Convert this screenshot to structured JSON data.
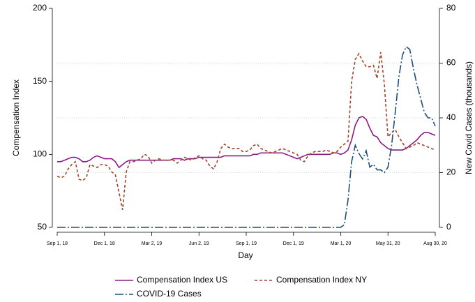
{
  "chart_data": {
    "type": "line",
    "x_label": "Day",
    "y_label": "Compensation Index",
    "y2_label": "New Covid Cases (thousands)",
    "categories": [
      "Sep 1, 18",
      null,
      null,
      null,
      null,
      null,
      null,
      null,
      null,
      null,
      null,
      null,
      null,
      "Dec 1, 18",
      null,
      null,
      null,
      null,
      null,
      null,
      null,
      null,
      null,
      null,
      null,
      null,
      "Mar 2, 19",
      null,
      null,
      null,
      null,
      null,
      null,
      null,
      null,
      null,
      null,
      null,
      null,
      "Jun 2, 19",
      null,
      null,
      null,
      null,
      null,
      null,
      null,
      null,
      null,
      null,
      null,
      null,
      "Sep 1, 19",
      null,
      null,
      null,
      null,
      null,
      null,
      null,
      null,
      null,
      null,
      null,
      null,
      "Dec 1, 19",
      null,
      null,
      null,
      null,
      null,
      null,
      null,
      null,
      null,
      null,
      null,
      null,
      "Mar 1, 20",
      null,
      null,
      null,
      null,
      null,
      null,
      null,
      null,
      null,
      null,
      null,
      null,
      "May 31, 20",
      null,
      null,
      null,
      null,
      null,
      null,
      null,
      null,
      null,
      null,
      null,
      null,
      "Aug 30, 20"
    ],
    "series": [
      {
        "name": "Compensation Index US",
        "color": "#8b1a89",
        "dash": "solid",
        "axis": "y",
        "values": [
          95,
          95,
          96,
          97,
          98,
          98,
          97,
          95,
          95,
          96,
          98,
          99,
          98,
          97,
          97,
          97,
          95,
          91,
          93,
          95,
          96,
          96,
          96,
          96,
          96,
          96,
          96,
          96,
          96,
          96,
          96,
          96,
          97,
          97,
          97,
          96,
          97,
          97,
          97,
          98,
          98,
          98,
          98,
          98,
          98,
          98,
          99,
          99,
          99,
          99,
          99,
          99,
          99,
          99,
          100,
          100,
          101,
          101,
          101,
          101,
          101,
          101,
          101,
          100,
          99,
          98,
          97,
          98,
          99,
          100,
          100,
          100,
          100,
          100,
          100,
          100,
          101,
          101,
          100,
          101,
          103,
          110,
          120,
          125,
          126,
          124,
          118,
          113,
          112,
          108,
          106,
          104,
          103,
          103,
          103,
          103,
          104,
          106,
          108,
          110,
          113,
          115,
          115,
          114,
          113
        ]
      },
      {
        "name": "Compensation Index NY",
        "color": "#a0442a",
        "dash": "dashed",
        "axis": "y",
        "values": [
          85,
          84,
          85,
          90,
          93,
          95,
          83,
          82,
          84,
          93,
          92,
          91,
          93,
          93,
          92,
          88,
          86,
          74,
          62,
          88,
          95,
          95,
          96,
          97,
          100,
          99,
          94,
          96,
          97,
          96,
          96,
          96,
          96,
          94,
          96,
          98,
          97,
          96,
          98,
          99,
          97,
          96,
          92,
          90,
          95,
          104,
          107,
          105,
          104,
          104,
          104,
          102,
          102,
          103,
          106,
          107,
          104,
          103,
          102,
          101,
          102,
          103,
          104,
          103,
          102,
          101,
          100,
          96,
          95,
          99,
          101,
          102,
          102,
          102,
          103,
          102,
          101,
          102,
          105,
          107,
          109,
          150,
          165,
          169,
          164,
          160,
          160,
          161,
          152,
          170,
          148,
          112,
          115,
          117,
          112,
          108,
          104,
          105,
          106,
          108,
          107,
          106,
          105,
          104,
          103
        ]
      },
      {
        "name": "COVID-19 Cases",
        "color": "#1f4e79",
        "dash": "dashdot",
        "axis": "y2",
        "values": [
          0,
          0,
          0,
          0,
          0,
          0,
          0,
          0,
          0,
          0,
          0,
          0,
          0,
          0,
          0,
          0,
          0,
          0,
          0,
          0,
          0,
          0,
          0,
          0,
          0,
          0,
          0,
          0,
          0,
          0,
          0,
          0,
          0,
          0,
          0,
          0,
          0,
          0,
          0,
          0,
          0,
          0,
          0,
          0,
          0,
          0,
          0,
          0,
          0,
          0,
          0,
          0,
          0,
          0,
          0,
          0,
          0,
          0,
          0,
          0,
          0,
          0,
          0,
          0,
          0,
          0,
          0,
          0,
          0,
          0,
          0,
          0,
          0,
          0,
          0,
          0,
          0,
          0,
          0,
          1,
          10,
          24,
          30,
          27,
          25,
          28,
          22,
          23,
          21,
          21,
          20,
          22,
          30,
          42,
          55,
          63,
          66,
          65,
          58,
          52,
          47,
          42,
          40,
          40,
          37
        ]
      }
    ],
    "ylim": [
      50,
      200
    ],
    "yticks": [
      50,
      100,
      150,
      200
    ],
    "y2lim": [
      0,
      80
    ],
    "y2ticks": [
      0,
      20,
      40,
      60,
      80
    ],
    "grid": true
  }
}
